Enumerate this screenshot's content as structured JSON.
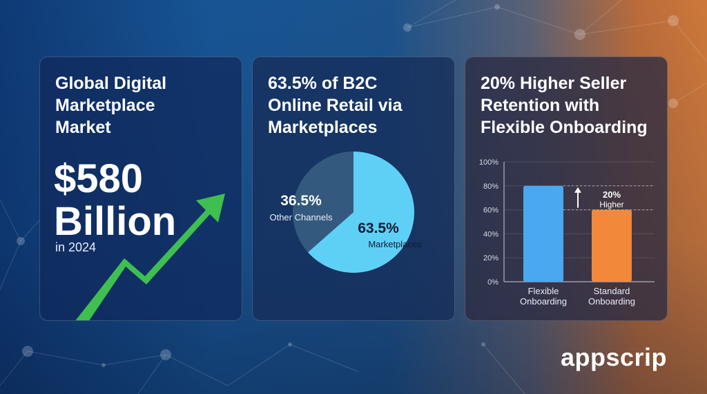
{
  "cards": [
    {
      "title": "Global Digital\nMarketplace\nMarket",
      "value": "$580\nBillion",
      "sub": "in 2024"
    },
    {
      "title": "63.5% of B2C\nOnline Retail via\nMarketplaces"
    },
    {
      "title": "20% Higher Seller\nRetention with\nFlexible Onboarding"
    }
  ],
  "logo": "appscrip",
  "colors": {
    "arrow": "#3fbf4f",
    "pie_marketplaces": "#5fd0f5",
    "pie_other": "#34597e",
    "bar_flexible": "#4aa8f0",
    "bar_standard": "#f2893a"
  },
  "chart_data": [
    {
      "type": "pie",
      "slices": [
        {
          "label": "Marketplaces",
          "value": 63.5,
          "value_label": "63.5%"
        },
        {
          "label": "Other Channels",
          "value": 36.5,
          "value_label": "36.5%"
        }
      ]
    },
    {
      "type": "bar",
      "categories": [
        "Flexible\nOnboarding",
        "Standard\nOnboarding"
      ],
      "values": [
        80,
        60
      ],
      "ylim": [
        0,
        100
      ],
      "yticks": [
        "0%",
        "20%",
        "40%",
        "60%",
        "80%",
        "100%"
      ],
      "grid": true,
      "annotation": {
        "value": "20%",
        "text": "Higher"
      }
    }
  ]
}
